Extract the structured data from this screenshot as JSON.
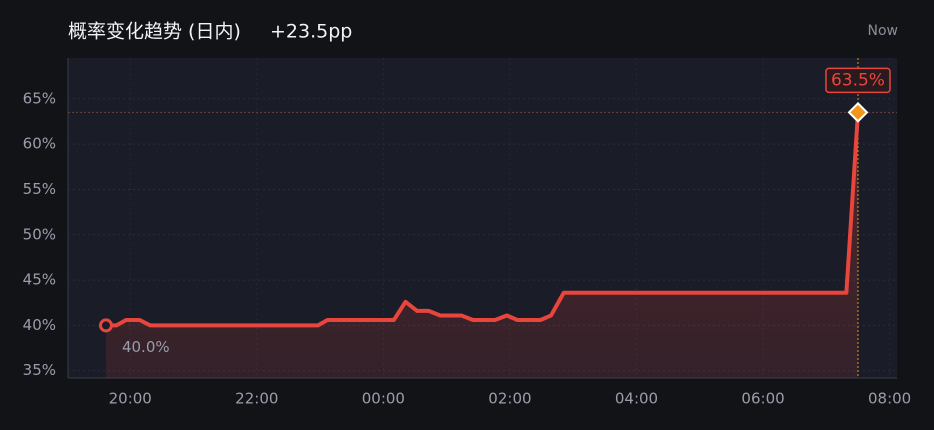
{
  "chart_data": {
    "type": "line",
    "title": "概率变化趋势 (日内)",
    "change": "+23.5pp",
    "now_label": "Now",
    "x": [
      "19:37",
      "19:47",
      "19:56",
      "20:09",
      "20:19",
      "22:58",
      "23:07",
      "00:10",
      "00:21",
      "00:32",
      "00:43",
      "00:54",
      "01:14",
      "01:25",
      "01:46",
      "01:57",
      "02:07",
      "02:29",
      "02:39",
      "02:51",
      "07:19",
      "07:30"
    ],
    "series": [
      {
        "color": "#e8453c",
        "values": [
          40.0,
          40.0,
          40.6,
          40.6,
          40.0,
          40.0,
          40.6,
          40.6,
          42.6,
          41.6,
          41.6,
          41.1,
          41.1,
          40.6,
          40.6,
          41.1,
          40.6,
          40.6,
          41.1,
          43.6,
          43.6,
          63.5
        ],
        "value_labels": [
          "40.0%",
          null,
          null,
          null,
          null,
          null,
          null,
          null,
          null,
          null,
          null,
          null,
          null,
          null,
          null,
          null,
          null,
          null,
          null,
          null,
          null,
          "63.5%"
        ]
      }
    ],
    "xlim": [
      "19:01",
      "08:07"
    ],
    "xticks": [
      "20:00",
      "22:00",
      "00:00",
      "02:00",
      "04:00",
      "06:00",
      "08:00"
    ],
    "ylim": [
      34.2,
      69.5
    ],
    "yticks": [
      {
        "value": 35,
        "label": "35%"
      },
      {
        "value": 40,
        "label": "40%"
      },
      {
        "value": 45,
        "label": "45%"
      },
      {
        "value": 50,
        "label": "50%"
      },
      {
        "value": 55,
        "label": "55%"
      },
      {
        "value": 60,
        "label": "60%"
      },
      {
        "value": 65,
        "label": "65%"
      }
    ],
    "grid": true
  }
}
